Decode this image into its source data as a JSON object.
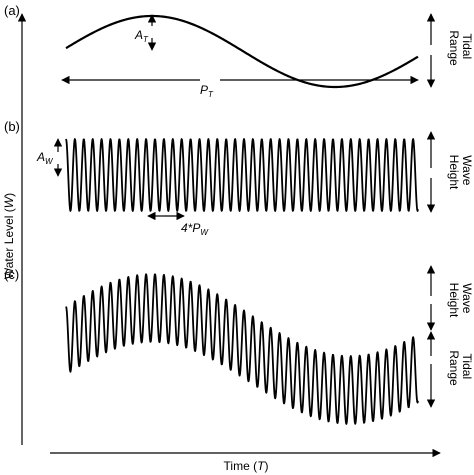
{
  "panels": {
    "a": {
      "label": "(a)",
      "amplitude_label": "A",
      "amplitude_subscript": "T",
      "period_label": "P",
      "period_subscript": "T",
      "right_labels": [
        "Tidal",
        "Range"
      ]
    },
    "b": {
      "label": "(b)",
      "amplitude_label": "A",
      "amplitude_subscript": "W",
      "period_label": "4*P",
      "period_subscript": "W",
      "right_labels": [
        "Wave",
        "Height"
      ]
    },
    "c": {
      "label": "(c)",
      "right_labels_top": [
        "Wave",
        "Height"
      ],
      "right_labels_bottom": [
        "Tidal",
        "Range"
      ]
    }
  },
  "axes": {
    "y_label": "Water Level (",
    "y_var": "W",
    "y_close": ")",
    "x_label": "Time (",
    "x_var": "T",
    "x_close": ")"
  }
}
